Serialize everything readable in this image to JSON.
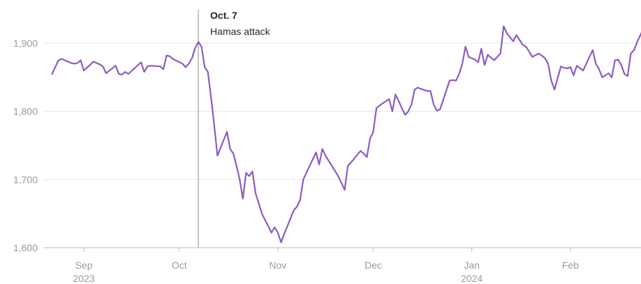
{
  "chart_data": {
    "type": "line",
    "y_ticks": [
      {
        "value": 1600,
        "label": "1,600"
      },
      {
        "value": 1700,
        "label": "1,700"
      },
      {
        "value": 1800,
        "label": "1,800"
      },
      {
        "value": 1900,
        "label": "1,900"
      }
    ],
    "ylim": [
      1600,
      1935
    ],
    "x_ticks": [
      {
        "date": "2023-09-01",
        "label": "Sep",
        "year": "2023"
      },
      {
        "date": "2023-10-01",
        "label": "Oct",
        "year": ""
      },
      {
        "date": "2023-11-01",
        "label": "Nov",
        "year": ""
      },
      {
        "date": "2023-12-01",
        "label": "Dec",
        "year": ""
      },
      {
        "date": "2024-01-01",
        "label": "Jan",
        "year": "2024"
      },
      {
        "date": "2024-02-01",
        "label": "Feb",
        "year": ""
      }
    ],
    "xlim": [
      "2023-08-21",
      "2024-02-21"
    ],
    "annotation": {
      "date": "2023-10-07",
      "title": "Oct. 7",
      "subtitle": "Hamas attack"
    },
    "line_color": "#8b5bc2",
    "grid": true,
    "series": [
      {
        "points": [
          [
            "2023-08-22",
            1855
          ],
          [
            "2023-08-23",
            1865
          ],
          [
            "2023-08-24",
            1875
          ],
          [
            "2023-08-25",
            1877
          ],
          [
            "2023-08-28",
            1871
          ],
          [
            "2023-08-29",
            1870
          ],
          [
            "2023-08-30",
            1871
          ],
          [
            "2023-08-31",
            1875
          ],
          [
            "2023-09-01",
            1860
          ],
          [
            "2023-09-04",
            1873
          ],
          [
            "2023-09-05",
            1871
          ],
          [
            "2023-09-06",
            1869
          ],
          [
            "2023-09-07",
            1866
          ],
          [
            "2023-09-08",
            1856
          ],
          [
            "2023-09-11",
            1867
          ],
          [
            "2023-09-12",
            1855
          ],
          [
            "2023-09-13",
            1854
          ],
          [
            "2023-09-14",
            1858
          ],
          [
            "2023-09-15",
            1855
          ],
          [
            "2023-09-18",
            1868
          ],
          [
            "2023-09-19",
            1872
          ],
          [
            "2023-09-20",
            1858
          ],
          [
            "2023-09-21",
            1866
          ],
          [
            "2023-09-22",
            1867
          ],
          [
            "2023-09-25",
            1866
          ],
          [
            "2023-09-26",
            1862
          ],
          [
            "2023-09-27",
            1882
          ],
          [
            "2023-09-28",
            1881
          ],
          [
            "2023-09-29",
            1877
          ],
          [
            "2023-10-02",
            1870
          ],
          [
            "2023-10-03",
            1865
          ],
          [
            "2023-10-04",
            1870
          ],
          [
            "2023-10-05",
            1878
          ],
          [
            "2023-10-06",
            1893
          ],
          [
            "2023-10-07",
            1902
          ],
          [
            "2023-10-08",
            1895
          ],
          [
            "2023-10-09",
            1865
          ],
          [
            "2023-10-10",
            1858
          ],
          [
            "2023-10-11",
            1820
          ],
          [
            "2023-10-12",
            1780
          ],
          [
            "2023-10-13",
            1735
          ],
          [
            "2023-10-16",
            1770
          ],
          [
            "2023-10-17",
            1745
          ],
          [
            "2023-10-18",
            1738
          ],
          [
            "2023-10-19",
            1720
          ],
          [
            "2023-10-20",
            1700
          ],
          [
            "2023-10-21",
            1672
          ],
          [
            "2023-10-22",
            1710
          ],
          [
            "2023-10-23",
            1705
          ],
          [
            "2023-10-24",
            1712
          ],
          [
            "2023-10-25",
            1680
          ],
          [
            "2023-10-26",
            1665
          ],
          [
            "2023-10-27",
            1650
          ],
          [
            "2023-10-30",
            1622
          ],
          [
            "2023-10-31",
            1630
          ],
          [
            "2023-11-01",
            1622
          ],
          [
            "2023-11-02",
            1608
          ],
          [
            "2023-11-03",
            1620
          ],
          [
            "2023-11-06",
            1655
          ],
          [
            "2023-11-07",
            1660
          ],
          [
            "2023-11-08",
            1670
          ],
          [
            "2023-11-09",
            1700
          ],
          [
            "2023-11-13",
            1740
          ],
          [
            "2023-11-14",
            1722
          ],
          [
            "2023-11-15",
            1745
          ],
          [
            "2023-11-16",
            1735
          ],
          [
            "2023-11-20",
            1705
          ],
          [
            "2023-11-21",
            1695
          ],
          [
            "2023-11-22",
            1685
          ],
          [
            "2023-11-23",
            1720
          ],
          [
            "2023-11-24",
            1725
          ],
          [
            "2023-11-27",
            1742
          ],
          [
            "2023-11-28",
            1738
          ],
          [
            "2023-11-29",
            1733
          ],
          [
            "2023-11-30",
            1760
          ],
          [
            "2023-12-01",
            1770
          ],
          [
            "2023-12-02",
            1805
          ],
          [
            "2023-12-04",
            1812
          ],
          [
            "2023-12-05",
            1815
          ],
          [
            "2023-12-06",
            1818
          ],
          [
            "2023-12-07",
            1800
          ],
          [
            "2023-12-08",
            1825
          ],
          [
            "2023-12-11",
            1795
          ],
          [
            "2023-12-12",
            1800
          ],
          [
            "2023-12-13",
            1810
          ],
          [
            "2023-12-14",
            1832
          ],
          [
            "2023-12-15",
            1835
          ],
          [
            "2023-12-16",
            1833
          ],
          [
            "2023-12-18",
            1830
          ],
          [
            "2023-12-19",
            1830
          ],
          [
            "2023-12-20",
            1810
          ],
          [
            "2023-12-21",
            1801
          ],
          [
            "2023-12-22",
            1803
          ],
          [
            "2023-12-25",
            1845
          ],
          [
            "2023-12-26",
            1846
          ],
          [
            "2023-12-27",
            1845
          ],
          [
            "2023-12-28",
            1855
          ],
          [
            "2023-12-29",
            1870
          ],
          [
            "2023-12-30",
            1895
          ],
          [
            "2023-12-31",
            1880
          ],
          [
            "2024-01-02",
            1876
          ],
          [
            "2024-01-03",
            1872
          ],
          [
            "2024-01-04",
            1892
          ],
          [
            "2024-01-05",
            1868
          ],
          [
            "2024-01-06",
            1883
          ],
          [
            "2024-01-08",
            1875
          ],
          [
            "2024-01-09",
            1880
          ],
          [
            "2024-01-10",
            1885
          ],
          [
            "2024-01-11",
            1925
          ],
          [
            "2024-01-12",
            1915
          ],
          [
            "2024-01-14",
            1903
          ],
          [
            "2024-01-15",
            1912
          ],
          [
            "2024-01-16",
            1905
          ],
          [
            "2024-01-17",
            1898
          ],
          [
            "2024-01-18",
            1895
          ],
          [
            "2024-01-19",
            1888
          ],
          [
            "2024-01-20",
            1880
          ],
          [
            "2024-01-22",
            1885
          ],
          [
            "2024-01-23",
            1882
          ],
          [
            "2024-01-24",
            1878
          ],
          [
            "2024-01-25",
            1870
          ],
          [
            "2024-01-26",
            1845
          ],
          [
            "2024-01-27",
            1832
          ],
          [
            "2024-01-29",
            1866
          ],
          [
            "2024-01-30",
            1864
          ],
          [
            "2024-01-31",
            1863
          ],
          [
            "2024-02-01",
            1865
          ],
          [
            "2024-02-02",
            1853
          ],
          [
            "2024-02-03",
            1867
          ],
          [
            "2024-02-05",
            1860
          ],
          [
            "2024-02-06",
            1870
          ],
          [
            "2024-02-07",
            1880
          ],
          [
            "2024-02-08",
            1890
          ],
          [
            "2024-02-09",
            1870
          ],
          [
            "2024-02-10",
            1862
          ],
          [
            "2024-02-11",
            1850
          ],
          [
            "2024-02-13",
            1856
          ],
          [
            "2024-02-14",
            1850
          ],
          [
            "2024-02-15",
            1875
          ],
          [
            "2024-02-16",
            1876
          ],
          [
            "2024-02-17",
            1868
          ],
          [
            "2024-02-18",
            1855
          ],
          [
            "2024-02-19",
            1852
          ],
          [
            "2024-02-20",
            1885
          ],
          [
            "2024-02-21",
            1890
          ],
          [
            "2024-02-22",
            1902
          ],
          [
            "2024-02-23",
            1912
          ],
          [
            "2024-02-24",
            1922
          ]
        ]
      }
    ]
  }
}
